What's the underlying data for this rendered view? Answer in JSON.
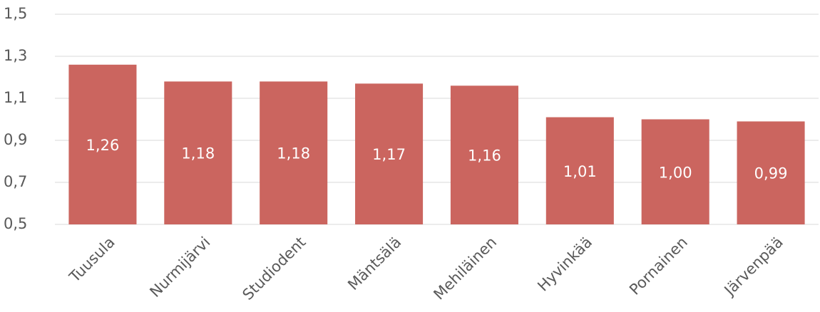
{
  "chart_data": {
    "type": "bar",
    "categories": [
      "Tuusula",
      "Nurmijärvi",
      "Studiodent",
      "Mäntsälä",
      "Mehiläinen",
      "Hyvinkää",
      "Pornainen",
      "Järvenpää"
    ],
    "values": [
      1.26,
      1.18,
      1.18,
      1.17,
      1.16,
      1.01,
      1.0,
      0.99
    ],
    "value_labels": [
      "1,26",
      "1,18",
      "1,18",
      "1,17",
      "1,16",
      "1,01",
      "1,00",
      "0,99"
    ],
    "color": "#cb655f",
    "ylim": [
      0.5,
      1.5
    ],
    "yticks": [
      {
        "value": 0.5,
        "label": "0,5"
      },
      {
        "value": 0.7,
        "label": "0,7"
      },
      {
        "value": 0.9,
        "label": "0,9"
      },
      {
        "value": 1.1,
        "label": "1,1"
      },
      {
        "value": 1.3,
        "label": "1,3"
      },
      {
        "value": 1.5,
        "label": "1,5"
      }
    ],
    "grid": true
  }
}
